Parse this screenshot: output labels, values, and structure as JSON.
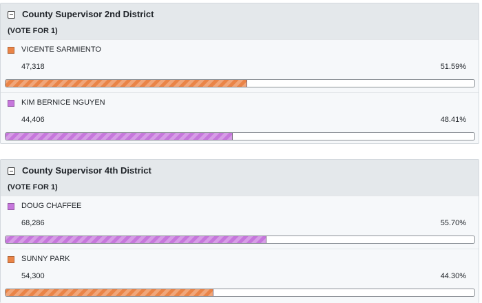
{
  "races": [
    {
      "title": "County Supervisor 2nd District",
      "vote_for": "(VOTE FOR 1)",
      "candidates": [
        {
          "name": "VICENTE SARMIENTO",
          "votes": "47,318",
          "percent": "51.59%",
          "share": 51.59,
          "color": "#ea8447"
        },
        {
          "name": "KIM BERNICE NGUYEN",
          "votes": "44,406",
          "percent": "48.41%",
          "share": 48.41,
          "color": "#c677dc"
        }
      ]
    },
    {
      "title": "County Supervisor 4th District",
      "vote_for": "(VOTE FOR 1)",
      "candidates": [
        {
          "name": "DOUG CHAFFEE",
          "votes": "68,286",
          "percent": "55.70%",
          "share": 55.7,
          "color": "#c677dc"
        },
        {
          "name": "SUNNY PARK",
          "votes": "54,300",
          "percent": "44.30%",
          "share": 44.3,
          "color": "#ea8447"
        }
      ]
    }
  ]
}
